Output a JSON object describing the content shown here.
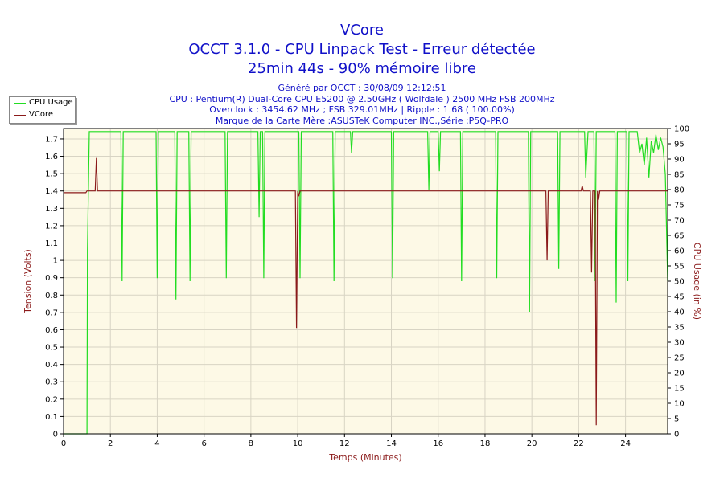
{
  "title": {
    "line1": "VCore",
    "line2": "OCCT 3.1.0 - CPU Linpack Test - Erreur détectée",
    "line3": "25min 44s - 90% mémoire libre"
  },
  "info": {
    "line1": "Généré par OCCT : 30/08/09 12:12:51",
    "line2": "CPU : Pentium(R) Dual-Core CPU E5200 @ 2.50GHz ( Wolfdale ) 2500 MHz FSB 200MHz",
    "line3": "Overclock : 3454.62 MHz ; FSB 329.01MHz | Ripple : 1.68 ( 100.00%)",
    "line4": "Marque de la Carte Mère :ASUSTeK Computer INC.,Série :P5Q-PRO"
  },
  "colors": {
    "cpu_usage": "#22dd22",
    "vcore": "#8b1a1a",
    "plot_bg": "#fdf9e6",
    "grid": "#d8d4c4",
    "axis_label_left": "#8b1a1a",
    "axis_label_bottom": "#8b1a1a"
  },
  "chart_data": {
    "type": "line",
    "xlabel": "Temps (Minutes)",
    "ylabel": "Tension (Volts)",
    "y2label": "CPU Usage (in %)",
    "xlim": [
      0,
      25.8
    ],
    "ylim": [
      0,
      1.76
    ],
    "y2lim": [
      0,
      100
    ],
    "x_ticks": [
      "0",
      "2",
      "4",
      "6",
      "8",
      "10",
      "12",
      "14",
      "16",
      "18",
      "20",
      "22",
      "24"
    ],
    "y_ticks": [
      "0",
      "0.1",
      "0.2",
      "0.3",
      "0.4",
      "0.5",
      "0.6",
      "0.7",
      "0.8",
      "0.9",
      "1",
      "1.1",
      "1.2",
      "1.3",
      "1.4",
      "1.5",
      "1.6",
      "1.7"
    ],
    "y2_ticks": [
      "0",
      "5",
      "10",
      "15",
      "20",
      "25",
      "30",
      "35",
      "40",
      "45",
      "50",
      "55",
      "60",
      "65",
      "70",
      "75",
      "80",
      "85",
      "90",
      "95",
      "100"
    ],
    "grid": true,
    "legend": "top-left",
    "series": [
      {
        "name": "CPU Usage",
        "axis": "right",
        "x": [
          0,
          1.0,
          1.02,
          1.1,
          1.2,
          1.4,
          2.45,
          2.5,
          2.55,
          2.6,
          3.95,
          4.0,
          4.05,
          4.1,
          4.75,
          4.8,
          4.85,
          4.9,
          5.35,
          5.4,
          5.45,
          5.5,
          6.9,
          6.95,
          7.0,
          7.05,
          8.3,
          8.35,
          8.4,
          8.5,
          8.55,
          8.6,
          10.05,
          10.1,
          10.15,
          10.2,
          11.5,
          11.55,
          11.6,
          11.65,
          12.25,
          12.3,
          12.35,
          12.4,
          14.0,
          14.05,
          14.1,
          14.15,
          15.55,
          15.6,
          15.65,
          15.7,
          16.0,
          16.05,
          16.1,
          16.95,
          17.0,
          17.05,
          17.1,
          18.45,
          18.5,
          18.55,
          18.6,
          19.85,
          19.9,
          19.95,
          20.0,
          21.1,
          21.15,
          21.2,
          21.25,
          22.25,
          22.3,
          22.4,
          22.45,
          22.5,
          22.65,
          22.7,
          22.75,
          22.8,
          23.55,
          23.6,
          23.65,
          23.7,
          24.05,
          24.1,
          24.15,
          24.2,
          24.5,
          24.6,
          24.7,
          24.8,
          24.9,
          25.0,
          25.1,
          25.2,
          25.3,
          25.4,
          25.5,
          25.6,
          25.7,
          25.8
        ],
        "values": [
          0,
          0,
          60,
          99,
          99,
          99,
          99,
          50,
          99,
          99,
          99,
          51,
          99,
          99,
          99,
          44,
          99,
          99,
          99,
          50,
          99,
          99,
          99,
          51,
          99,
          99,
          99,
          71,
          99,
          99,
          51,
          99,
          99,
          51,
          99,
          99,
          99,
          50,
          99,
          99,
          99,
          92,
          99,
          99,
          99,
          51,
          99,
          99,
          99,
          80,
          99,
          99,
          99,
          86,
          99,
          99,
          50,
          99,
          99,
          99,
          51,
          99,
          99,
          99,
          40,
          99,
          99,
          99,
          54,
          99,
          99,
          99,
          84,
          99,
          99,
          99,
          99,
          50,
          99,
          99,
          99,
          43,
          99,
          99,
          99,
          50,
          99,
          99,
          99,
          92,
          95,
          88,
          97,
          84,
          96,
          92,
          98,
          93,
          97,
          94,
          85,
          50
        ]
      },
      {
        "name": "VCore",
        "axis": "left",
        "x": [
          0,
          0.95,
          1.0,
          1.35,
          1.4,
          1.45,
          1.5,
          9.9,
          9.95,
          10.0,
          10.05,
          10.1,
          20.6,
          20.65,
          20.7,
          22.1,
          22.15,
          22.2,
          22.5,
          22.55,
          22.6,
          22.7,
          22.75,
          22.8,
          22.85,
          22.9,
          25.8
        ],
        "values": [
          1.39,
          1.39,
          1.4,
          1.4,
          1.59,
          1.4,
          1.4,
          1.4,
          0.61,
          1.4,
          1.37,
          1.4,
          1.4,
          1.0,
          1.4,
          1.4,
          1.43,
          1.4,
          1.4,
          0.93,
          1.4,
          1.4,
          0.05,
          1.4,
          1.35,
          1.4,
          1.4
        ]
      }
    ]
  }
}
